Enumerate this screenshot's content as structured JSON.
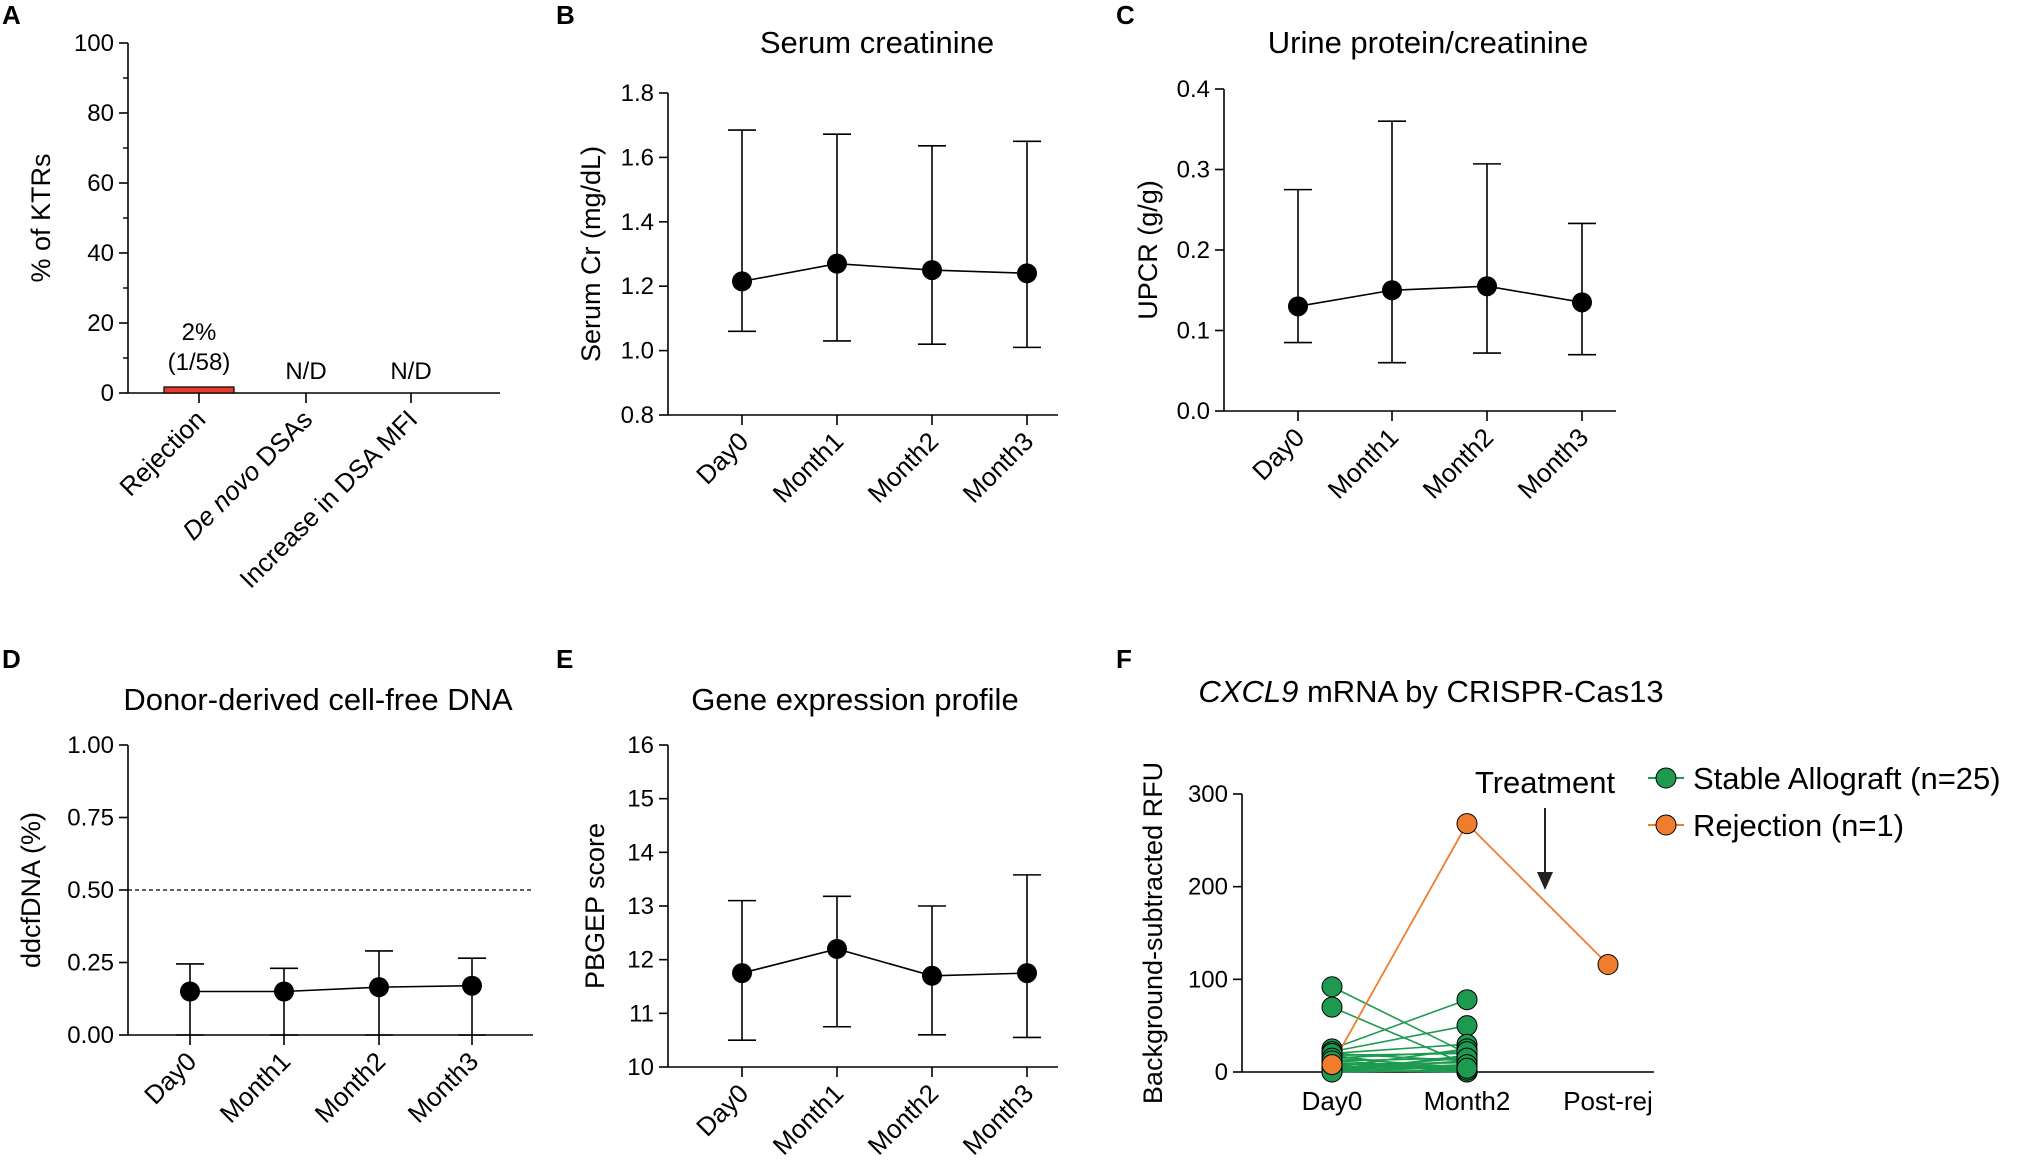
{
  "chart_data": [
    {
      "panel": "A",
      "type": "bar",
      "title": "",
      "ylabel": "% of KTRs",
      "ylim": [
        0,
        100
      ],
      "yticks": [
        "0",
        "20",
        "40",
        "60",
        "80",
        "100"
      ],
      "categories": [
        "Rejection",
        "De novo DSAs",
        "Increase in DSA MFI"
      ],
      "category_parts": [
        [
          {
            "t": "Rejection",
            "i": false
          }
        ],
        [
          {
            "t": "De novo",
            "i": true
          },
          {
            "t": " DSAs",
            "i": false
          }
        ],
        [
          {
            "t": "Increase in DSA MFI",
            "i": false
          }
        ]
      ],
      "values": [
        1.72,
        0,
        0
      ],
      "bar_color": "#e53b2c",
      "bar_labels": [
        [
          "2%",
          "(1/58)"
        ],
        [
          "N/D"
        ],
        [
          "N/D"
        ]
      ]
    },
    {
      "panel": "B",
      "type": "line",
      "title": "Serum creatinine",
      "ylabel": "Serum Cr (mg/dL)",
      "ylim": [
        0.8,
        1.8
      ],
      "yticks": [
        "0.8",
        "1.0",
        "1.2",
        "1.4",
        "1.6",
        "1.8"
      ],
      "categories": [
        "Day0",
        "Month1",
        "Month2",
        "Month3"
      ],
      "values": [
        1.215,
        1.27,
        1.25,
        1.24
      ],
      "err_low": [
        1.06,
        1.03,
        1.02,
        1.01
      ],
      "err_high": [
        1.685,
        1.672,
        1.636,
        1.65
      ]
    },
    {
      "panel": "C",
      "type": "line",
      "title": "Urine protein/creatinine",
      "ylabel": "UPCR (g/g)",
      "ylim": [
        0.0,
        0.4
      ],
      "yticks": [
        "0.0",
        "0.1",
        "0.2",
        "0.3",
        "0.4"
      ],
      "categories": [
        "Day0",
        "Month1",
        "Month2",
        "Month3"
      ],
      "values": [
        0.13,
        0.15,
        0.155,
        0.135
      ],
      "err_low": [
        0.085,
        0.06,
        0.072,
        0.07
      ],
      "err_high": [
        0.275,
        0.36,
        0.307,
        0.233
      ]
    },
    {
      "panel": "D",
      "type": "line",
      "title": "Donor-derived cell-free DNA",
      "ylabel": "ddcfDNA (%)",
      "ylim": [
        0.0,
        1.0
      ],
      "yticks": [
        "0.00",
        "0.25",
        "0.50",
        "0.75",
        "1.00"
      ],
      "categories": [
        "Day0",
        "Month1",
        "Month2",
        "Month3"
      ],
      "values": [
        0.15,
        0.15,
        0.165,
        0.17
      ],
      "err_low": [
        0.0,
        0.0,
        0.0,
        0.0
      ],
      "err_high": [
        0.245,
        0.23,
        0.29,
        0.265
      ],
      "threshold": 0.5
    },
    {
      "panel": "E",
      "type": "line",
      "title": "Gene expression profile",
      "ylabel": "PBGEP score",
      "ylim": [
        10,
        16
      ],
      "yticks": [
        "10",
        "11",
        "12",
        "13",
        "14",
        "15",
        "16"
      ],
      "categories": [
        "Day0",
        "Month1",
        "Month2",
        "Month3"
      ],
      "values": [
        11.75,
        12.2,
        11.7,
        11.75
      ],
      "err_low": [
        10.5,
        10.75,
        10.6,
        10.55
      ],
      "err_high": [
        13.1,
        13.18,
        13.0,
        13.58
      ]
    },
    {
      "panel": "F",
      "type": "line",
      "title_parts": [
        {
          "t": "CXCL9",
          "i": true
        },
        {
          "t": " mRNA by CRISPR-Cas13",
          "i": false
        }
      ],
      "ylabel": "Background-subtracted RFU",
      "ylim": [
        0,
        300
      ],
      "yticks": [
        "0",
        "100",
        "200",
        "300"
      ],
      "categories": [
        "Day0",
        "Month2",
        "Post-rej"
      ],
      "annotation": "Treatment",
      "series": [
        {
          "name": "Stable Allograft (n=25)",
          "color": "#1d9a50",
          "pairs": [
            [
              92,
              20
            ],
            [
              70,
              8
            ],
            [
              25,
              78
            ],
            [
              22,
              50
            ],
            [
              20,
              30
            ],
            [
              18,
              20
            ],
            [
              15,
              5
            ],
            [
              12,
              15
            ],
            [
              10,
              2
            ],
            [
              8,
              10
            ],
            [
              5,
              25
            ],
            [
              5,
              3
            ],
            [
              3,
              12
            ],
            [
              2,
              0
            ],
            [
              1,
              5
            ],
            [
              0,
              18
            ],
            [
              18,
              0
            ],
            [
              20,
              12
            ],
            [
              6,
              6
            ],
            [
              15,
              22
            ],
            [
              10,
              0
            ],
            [
              4,
              15
            ],
            [
              2,
              8
            ],
            [
              0,
              2
            ],
            [
              12,
              4
            ]
          ]
        },
        {
          "name": "Rejection (n=1)",
          "color": "#f07d2d",
          "values": [
            8,
            268,
            116
          ]
        }
      ]
    }
  ]
}
